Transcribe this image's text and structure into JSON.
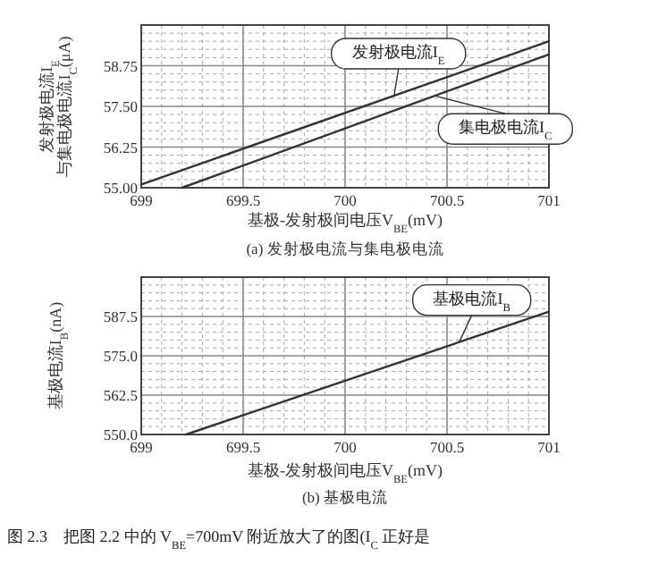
{
  "chart_data": [
    {
      "type": "line",
      "title": "(a) 发射极电流与集电极电流",
      "xlabel": "基极-发射极间电压V$_{BE}$(mV)",
      "ylabel": "发射极电流I$_{E}$\n与集电极电流I$_{C}$(μA)",
      "xlim": [
        699,
        701
      ],
      "ylim": [
        55,
        60
      ],
      "xticks": [
        699,
        {
          "value": 699.1,
          "label": null
        },
        {
          "value": 699.2,
          "label": null
        },
        {
          "value": 699.3,
          "label": null
        },
        {
          "value": 699.4,
          "label": null
        },
        699.5,
        {
          "value": 699.6,
          "label": null
        },
        {
          "value": 699.7,
          "label": null
        },
        {
          "value": 699.8,
          "label": null
        },
        {
          "value": 699.9,
          "label": null
        },
        700,
        {
          "value": 700.1,
          "label": null
        },
        {
          "value": 700.2,
          "label": null
        },
        {
          "value": 700.3,
          "label": null
        },
        {
          "value": 700.4,
          "label": null
        },
        700.5,
        {
          "value": 700.6,
          "label": null
        },
        {
          "value": 700.7,
          "label": null
        },
        {
          "value": 700.8,
          "label": null
        },
        {
          "value": 700.9,
          "label": null
        },
        701
      ],
      "yticks": [
        {
          "value": 55,
          "label": "55.00"
        },
        {
          "value": 55.25,
          "label": null
        },
        {
          "value": 55.5,
          "label": null
        },
        {
          "value": 55.75,
          "label": null
        },
        {
          "value": 56,
          "label": null
        },
        {
          "value": 56.25,
          "label": "56.25"
        },
        {
          "value": 56.5,
          "label": null
        },
        {
          "value": 56.75,
          "label": null
        },
        {
          "value": 57,
          "label": null
        },
        {
          "value": 57.25,
          "label": null
        },
        {
          "value": 57.5,
          "label": "57.50"
        },
        {
          "value": 57.75,
          "label": null
        },
        {
          "value": 58,
          "label": null
        },
        {
          "value": 58.25,
          "label": null
        },
        {
          "value": 58.5,
          "label": null
        },
        {
          "value": 58.75,
          "label": "58.75"
        },
        {
          "value": 59,
          "label": null
        },
        {
          "value": 59.25,
          "label": null
        },
        {
          "value": 59.5,
          "label": null
        },
        {
          "value": 59.75,
          "label": null
        },
        {
          "value": 60,
          "label": null
        }
      ],
      "grid": true,
      "series": [
        {
          "name": "发射极电流I$_{E}$",
          "color": "#333333",
          "x": [
            699,
            701
          ],
          "values": [
            55.1,
            59.5
          ]
        },
        {
          "name": "集电极电流I$_{C}$",
          "color": "#333333",
          "x": [
            699.2,
            701
          ],
          "values": [
            55.0,
            59.1
          ]
        }
      ]
    },
    {
      "type": "line",
      "title": "(b) 基极电流",
      "xlabel": "基极-发射极间电压V$_{BE}$(mV)",
      "ylabel": "基极电流I$_{B}$(nA)",
      "xlim": [
        699,
        701
      ],
      "ylim": [
        550,
        600
      ],
      "xticks": [
        699,
        {
          "value": 699.1,
          "label": null
        },
        {
          "value": 699.2,
          "label": null
        },
        {
          "value": 699.3,
          "label": null
        },
        {
          "value": 699.4,
          "label": null
        },
        699.5,
        {
          "value": 699.6,
          "label": null
        },
        {
          "value": 699.7,
          "label": null
        },
        {
          "value": 699.8,
          "label": null
        },
        {
          "value": 699.9,
          "label": null
        },
        700,
        {
          "value": 700.1,
          "label": null
        },
        {
          "value": 700.2,
          "label": null
        },
        {
          "value": 700.3,
          "label": null
        },
        {
          "value": 700.4,
          "label": null
        },
        700.5,
        {
          "value": 700.6,
          "label": null
        },
        {
          "value": 700.7,
          "label": null
        },
        {
          "value": 700.8,
          "label": null
        },
        {
          "value": 700.9,
          "label": null
        },
        701
      ],
      "yticks": [
        {
          "value": 550,
          "label": "550.0"
        },
        {
          "value": 552.5,
          "label": null
        },
        {
          "value": 555,
          "label": null
        },
        {
          "value": 557.5,
          "label": null
        },
        {
          "value": 560,
          "label": null
        },
        {
          "value": 562.5,
          "label": "562.5"
        },
        {
          "value": 565,
          "label": null
        },
        {
          "value": 567.5,
          "label": null
        },
        {
          "value": 570,
          "label": null
        },
        {
          "value": 572.5,
          "label": null
        },
        {
          "value": 575,
          "label": "575.0"
        },
        {
          "value": 577.5,
          "label": null
        },
        {
          "value": 580,
          "label": null
        },
        {
          "value": 582.5,
          "label": null
        },
        {
          "value": 585,
          "label": null
        },
        {
          "value": 587.5,
          "label": "587.5"
        },
        {
          "value": 590,
          "label": null
        },
        {
          "value": 592.5,
          "label": null
        },
        {
          "value": 595,
          "label": null
        },
        {
          "value": 597.5,
          "label": null
        },
        {
          "value": 600,
          "label": null
        }
      ],
      "grid": true,
      "series": [
        {
          "name": "基极电流I$_{B}$",
          "color": "#333333",
          "x": [
            699.22,
            701
          ],
          "values": [
            550,
            589
          ]
        }
      ],
      "annotations": [
        "图 2.3　把图 2.2 中的 V$_{BE}$=700mV 附近放大了的图(I$_{C}$ 正好是"
      ]
    }
  ]
}
